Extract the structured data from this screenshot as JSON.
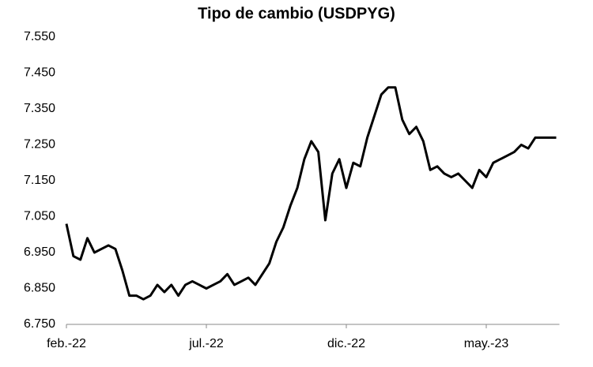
{
  "chart_data": {
    "type": "line",
    "title": "Tipo de cambio (USDPYG)",
    "categories": [
      "feb.-22",
      null,
      null,
      null,
      null,
      null,
      null,
      null,
      null,
      null,
      null,
      null,
      null,
      null,
      null,
      null,
      null,
      null,
      null,
      null,
      "jul.-22",
      null,
      null,
      null,
      null,
      null,
      null,
      null,
      null,
      null,
      null,
      null,
      null,
      null,
      null,
      null,
      null,
      null,
      null,
      null,
      "dic.-22",
      null,
      null,
      null,
      null,
      null,
      null,
      null,
      null,
      null,
      null,
      null,
      null,
      null,
      null,
      null,
      null,
      null,
      null,
      null,
      "may.-23",
      null,
      null,
      null,
      null,
      null,
      null,
      null,
      null,
      null,
      null
    ],
    "series": [
      {
        "color": "#000000",
        "values": [
          7030,
          6940,
          6930,
          6990,
          6950,
          6960,
          6970,
          6960,
          6900,
          6830,
          6830,
          6820,
          6830,
          6860,
          6840,
          6860,
          6830,
          6860,
          6870,
          6860,
          6850,
          6860,
          6870,
          6890,
          6860,
          6870,
          6880,
          6860,
          6890,
          6920,
          6980,
          7020,
          7080,
          7130,
          7210,
          7260,
          7230,
          7040,
          7170,
          7210,
          7130,
          7200,
          7190,
          7270,
          7330,
          7390,
          7410,
          7410,
          7320,
          7280,
          7300,
          7260,
          7180,
          7190,
          7170,
          7160,
          7170,
          7150,
          7130,
          7180,
          7160,
          7200,
          7210,
          7220,
          7230,
          7250,
          7240,
          7270,
          7270,
          7270,
          7270
        ]
      }
    ],
    "ylim": [
      6750,
      7550
    ],
    "yticks": [
      {
        "value": 6750,
        "label": "6.750"
      },
      {
        "value": 6850,
        "label": "6.850"
      },
      {
        "value": 6950,
        "label": "6.950"
      },
      {
        "value": 7050,
        "label": "7.050"
      },
      {
        "value": 7150,
        "label": "7.150"
      },
      {
        "value": 7250,
        "label": "7.250"
      },
      {
        "value": 7350,
        "label": "7.350"
      },
      {
        "value": 7450,
        "label": "7.450"
      },
      {
        "value": 7550,
        "label": "7.550"
      }
    ]
  }
}
